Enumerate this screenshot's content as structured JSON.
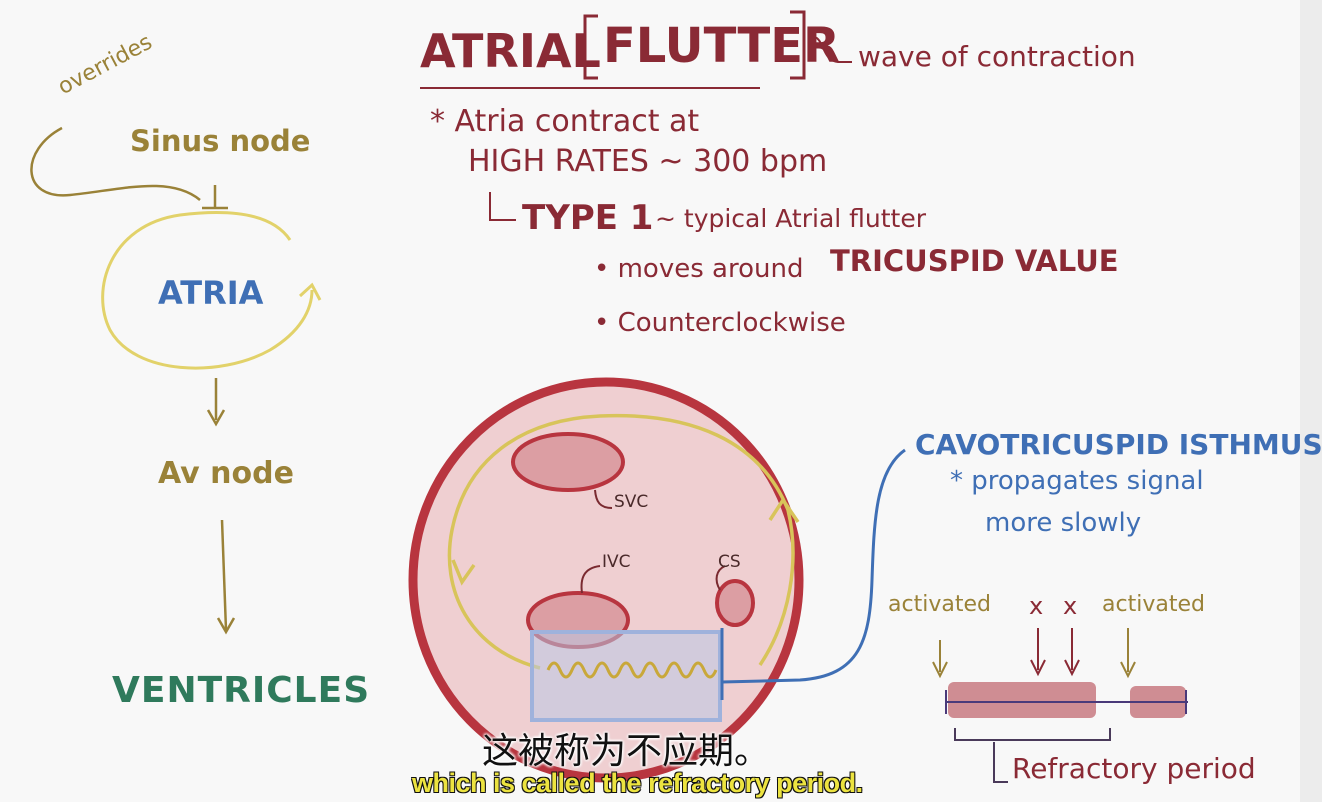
{
  "left_flow": {
    "overrides": "overrides",
    "sinus_node": "Sinus node",
    "atria": "ATRIA",
    "av_node": "Av node",
    "ventricles": "VENTRICLES"
  },
  "title": {
    "main": "ATRIAL",
    "bracketed": "FLUTTER",
    "note": "wave of contraction"
  },
  "notes": {
    "line1": "* Atria contract at",
    "line2": "HIGH RATES ~ 300 bpm",
    "type_label": "TYPE 1",
    "type_desc": "~ typical Atrial flutter",
    "bullet1_prefix": "• moves around",
    "bullet1_strong": "TRICUSPID VALUE",
    "bullet2": "• Counterclockwise"
  },
  "heart": {
    "svc": "SVC",
    "ivc": "IVC",
    "cs": "CS"
  },
  "isthmus": {
    "title": "CAVOTRICUSPID ISTHMUS",
    "line1": "* propagates signal",
    "line2": "more slowly"
  },
  "refractory": {
    "activated_left": "activated",
    "x1": "x",
    "x2": "x",
    "activated_right": "activated",
    "label": "Refractory period"
  },
  "subtitles": {
    "chinese": "这被称为不应期。",
    "english": "which is called the refractory period."
  },
  "colors": {
    "olive": "#9a8238",
    "maroon": "#8a2a35",
    "blue": "#3f6fb5",
    "green": "#2f7a5c",
    "heart_fill": "#efcfd1",
    "heart_border": "#b8353f",
    "pathway": "#d8c45a"
  }
}
